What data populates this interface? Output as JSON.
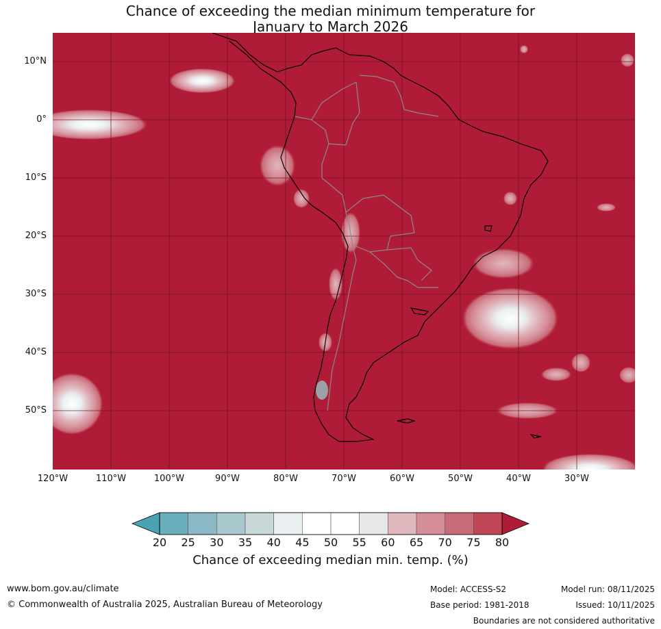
{
  "title": {
    "line1": "Chance of exceeding the median minimum temperature for",
    "line2": "January to March 2026"
  },
  "map": {
    "background_color": "#b01c37",
    "lat_labels": [
      "10°N",
      "0°",
      "10°S",
      "20°S",
      "30°S",
      "40°S",
      "50°S"
    ],
    "lon_labels": [
      "120°W",
      "110°W",
      "100°W",
      "90°W",
      "80°W",
      "70°W",
      "60°W",
      "50°W",
      "40°W",
      "30°W"
    ],
    "extent": {
      "lon": [
        -120,
        -20
      ],
      "lat": [
        -60,
        15
      ]
    }
  },
  "legend": {
    "ticks": [
      "20",
      "25",
      "30",
      "35",
      "40",
      "45",
      "50",
      "55",
      "60",
      "65",
      "70",
      "75",
      "80"
    ],
    "colors": [
      "#6aaebd",
      "#8db9c6",
      "#a9c8cd",
      "#c9d9da",
      "#e9eff1",
      "#ffffff",
      "#ffffff",
      "#e8e8e9",
      "#e1b7be",
      "#d58d98",
      "#c86a77",
      "#c04556"
    ],
    "under_color": "#4aa3b3",
    "over_color": "#b01c37",
    "label": "Chance of exceeding median min. temp. (%)"
  },
  "footer": {
    "website": "www.bom.gov.au/climate",
    "copyright": "© Commonwealth of Australia 2025, Australian Bureau of Meteorology",
    "model": "Model: ACCESS-S2",
    "base_period": "Base period: 1981-2018",
    "model_run": "Model run: 08/11/2025",
    "issued": "Issued: 10/11/2025",
    "disclaimer": "Boundaries are not considered authoritative"
  }
}
